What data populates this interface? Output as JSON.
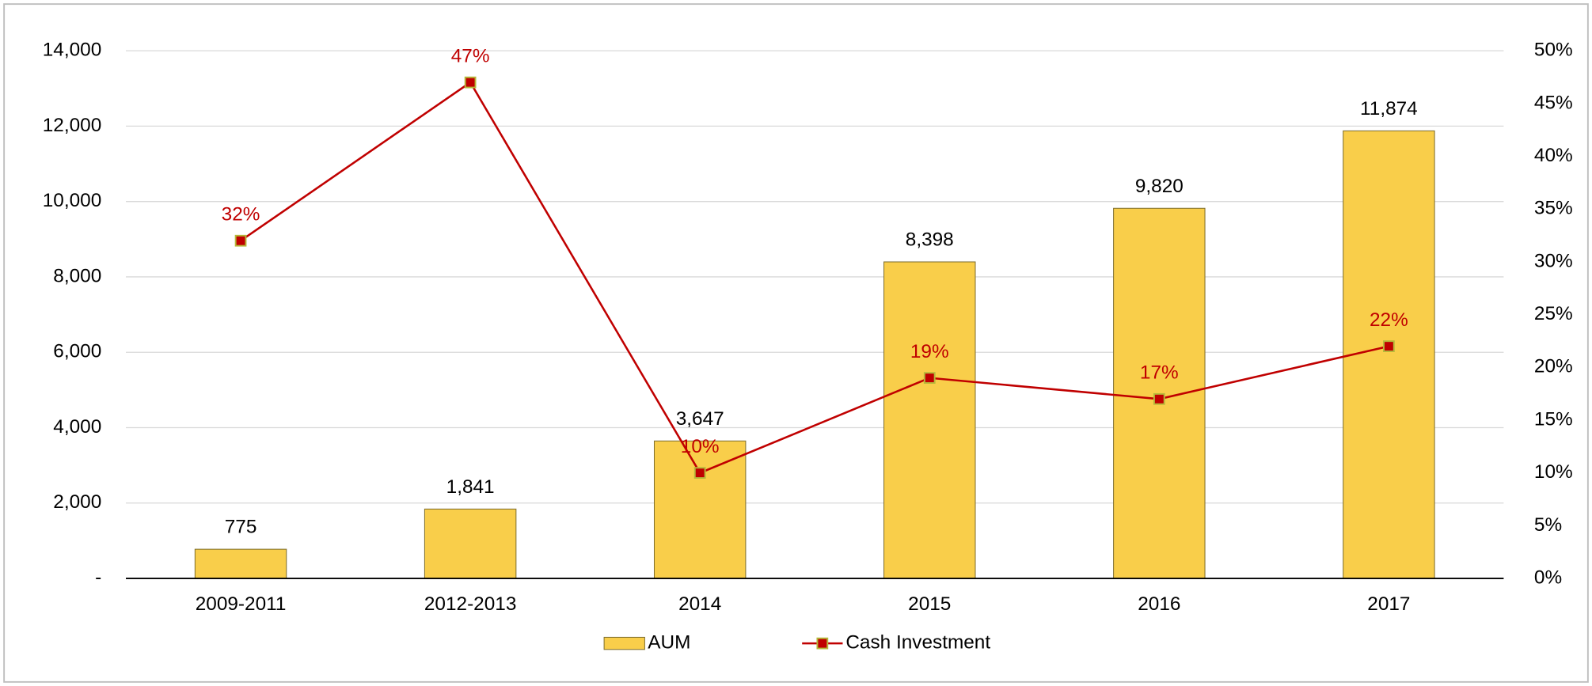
{
  "chart_data": {
    "type": "bar",
    "categories": [
      "2009-2011",
      "2012-2013",
      "2014",
      "2015",
      "2016",
      "2017"
    ],
    "series": [
      {
        "name": "AUM",
        "type": "bar",
        "color": "#F9CE4A",
        "values": [
          775,
          1841,
          3647,
          8398,
          9820,
          11874
        ],
        "value_labels": [
          "775",
          "1,841",
          "3,647",
          "8,398",
          "9,820",
          "11,874"
        ]
      },
      {
        "name": "Cash Investment",
        "type": "line",
        "axis": "y2",
        "color": "#C00000",
        "marker_edge": "#B5B83A",
        "values": [
          32,
          47,
          10,
          19,
          17,
          22
        ],
        "value_labels": [
          "32%",
          "47%",
          "10%",
          "19%",
          "17%",
          "22%"
        ]
      }
    ],
    "ylim": [
      0,
      14000
    ],
    "yticks": [
      {
        "value": 0,
        "label": "-"
      },
      {
        "value": 2000,
        "label": "2,000"
      },
      {
        "value": 4000,
        "label": "4,000"
      },
      {
        "value": 6000,
        "label": "6,000"
      },
      {
        "value": 8000,
        "label": "8,000"
      },
      {
        "value": 10000,
        "label": "10,000"
      },
      {
        "value": 12000,
        "label": "12,000"
      },
      {
        "value": 14000,
        "label": "14,000"
      }
    ],
    "y2lim": [
      0,
      50
    ],
    "y2ticks": [
      {
        "value": 0,
        "label": "0%"
      },
      {
        "value": 5,
        "label": "5%"
      },
      {
        "value": 10,
        "label": "10%"
      },
      {
        "value": 15,
        "label": "15%"
      },
      {
        "value": 20,
        "label": "20%"
      },
      {
        "value": 25,
        "label": "25%"
      },
      {
        "value": 30,
        "label": "30%"
      },
      {
        "value": 35,
        "label": "35%"
      },
      {
        "value": 40,
        "label": "40%"
      },
      {
        "value": 45,
        "label": "45%"
      },
      {
        "value": 50,
        "label": "50%"
      }
    ],
    "grid": true,
    "legend": "bottom"
  }
}
